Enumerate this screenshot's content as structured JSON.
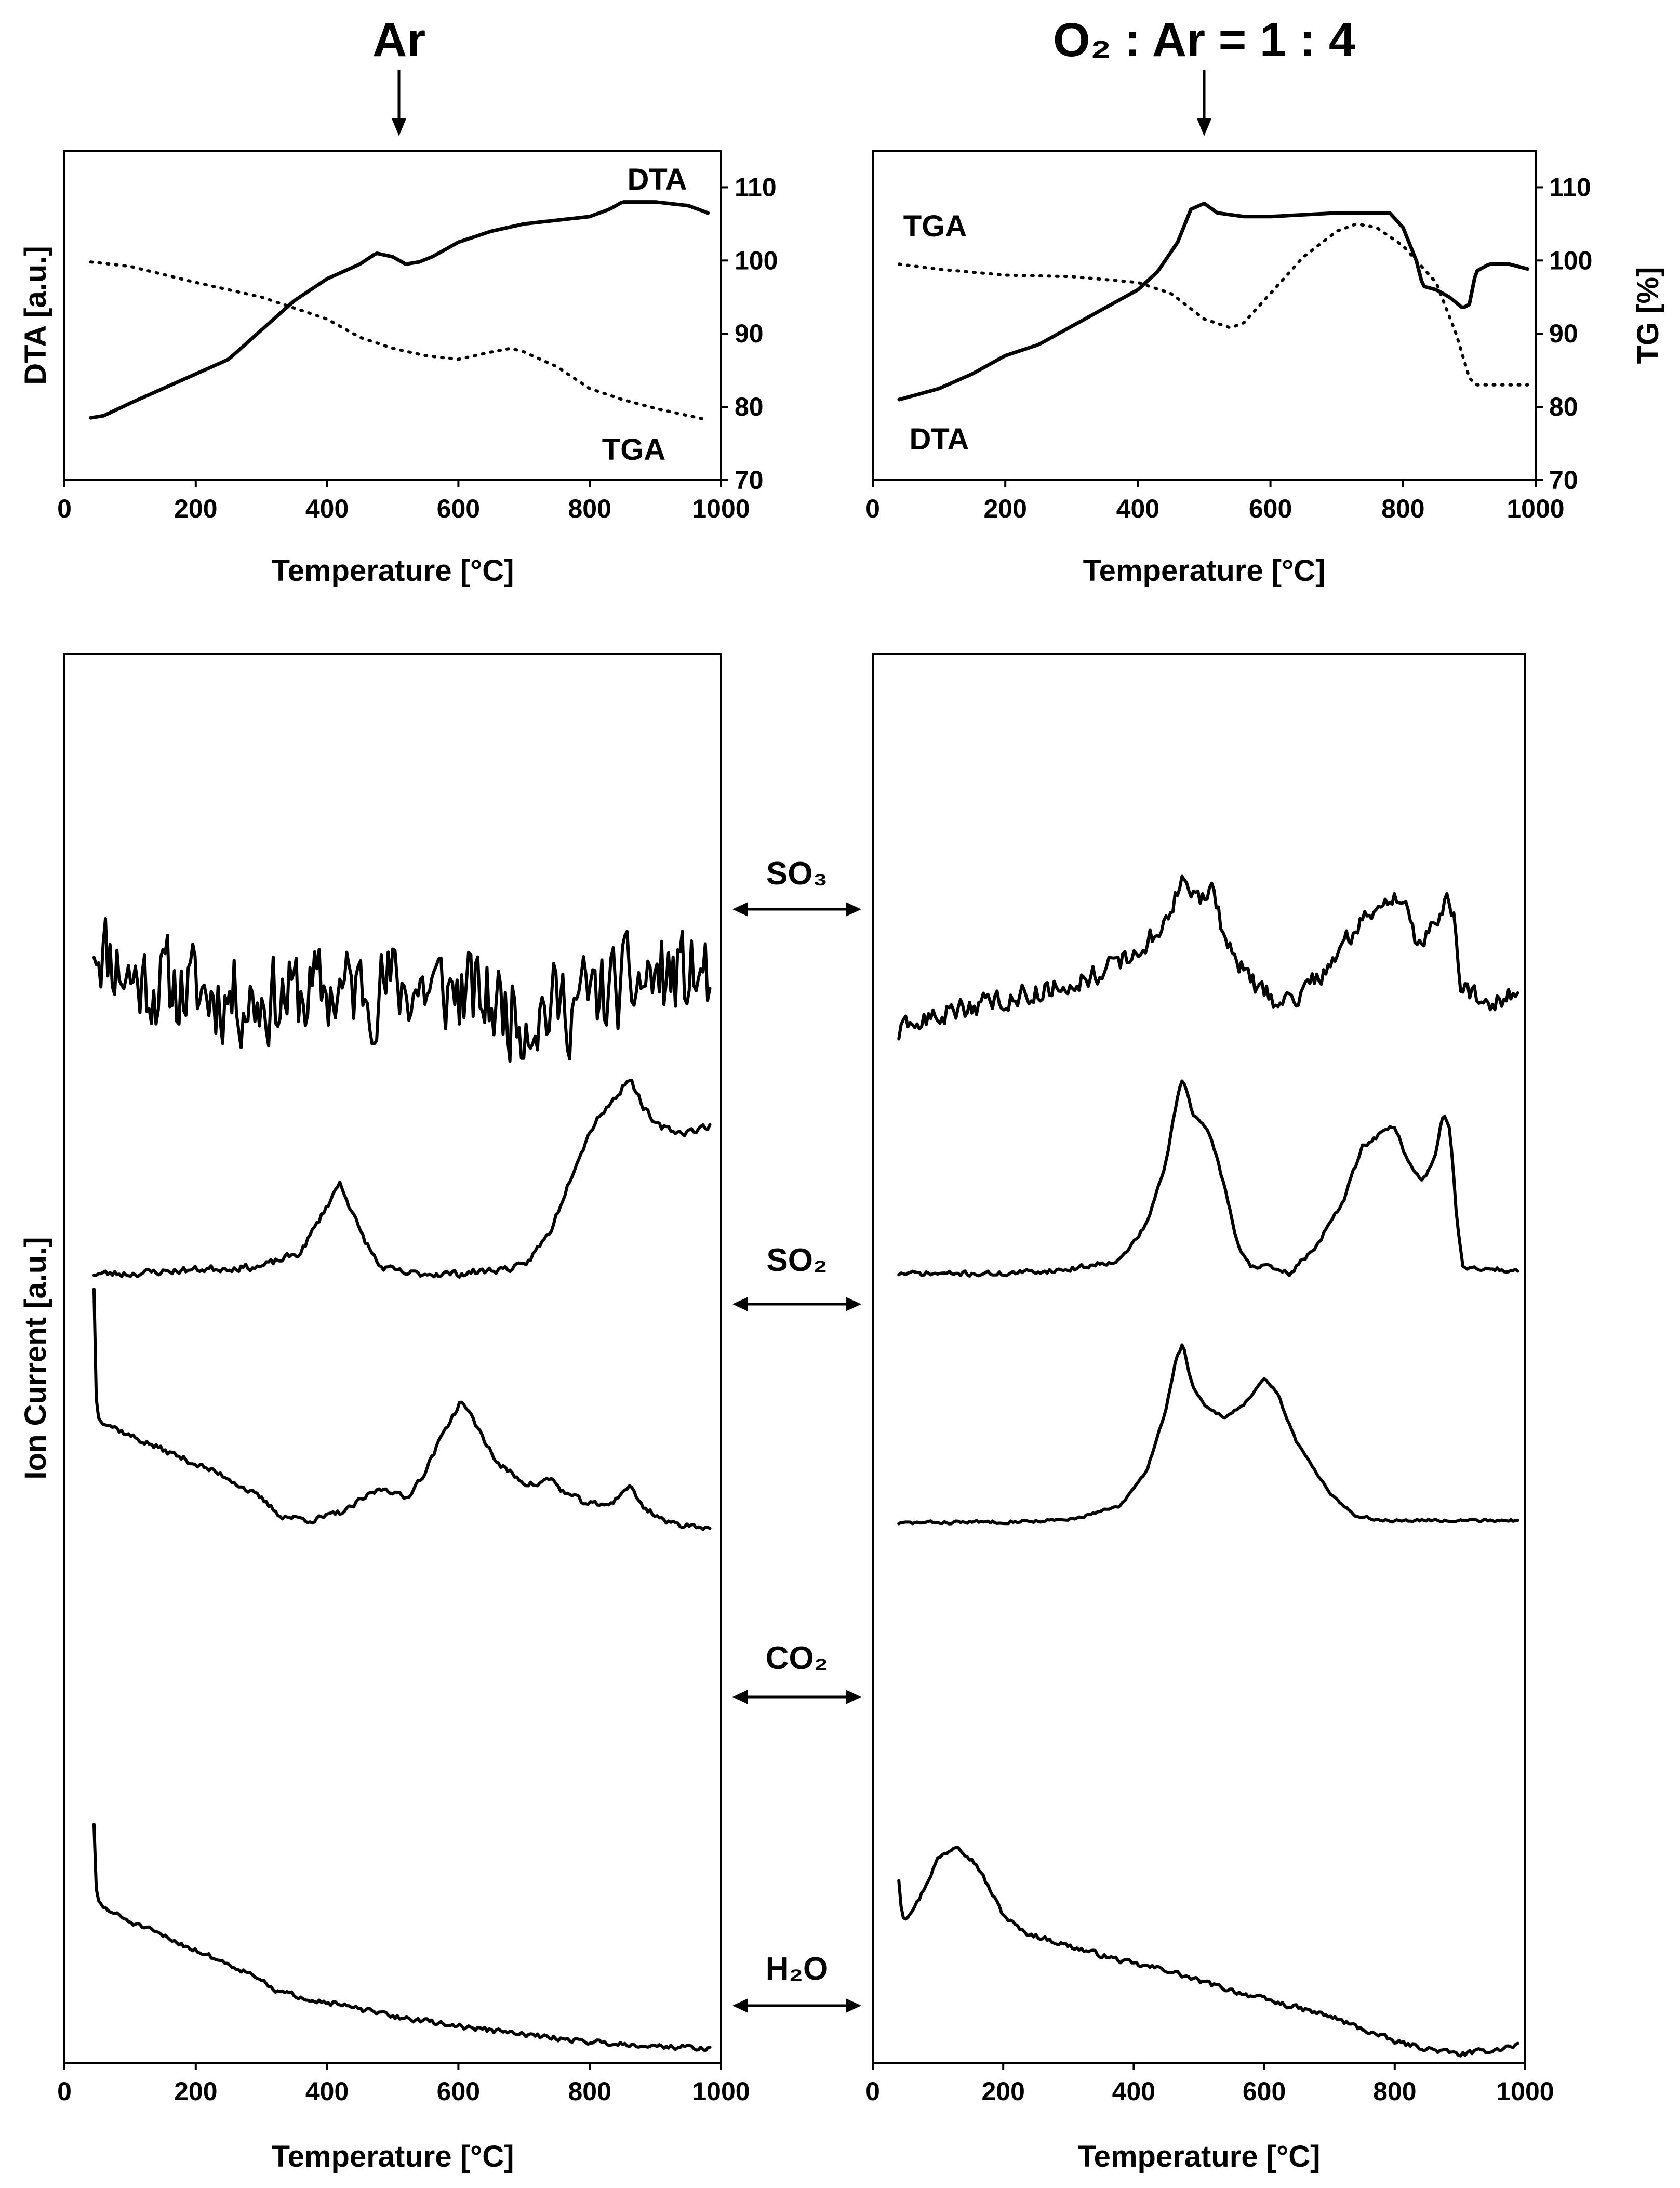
{
  "figure": {
    "left_title": "Ar",
    "right_title": "O₂ : Ar = 1 : 4",
    "ms_ylabel": "Ion Current [a.u.]",
    "gases": [
      "SO₃",
      "SO₂",
      "CO₂",
      "H₂O"
    ]
  },
  "chart_data": [
    {
      "id": "ta-ar",
      "type": "line",
      "title": "Ar",
      "xlabel": "Temperature [°C]",
      "ylabel_left": "DTA [a.u.]",
      "ylabel_right": "",
      "xlim": [
        0,
        1000
      ],
      "xticks": [
        0,
        200,
        400,
        600,
        800,
        1000
      ],
      "tg_ylim": [
        70,
        115
      ],
      "tg_yticks": [
        70,
        80,
        90,
        100,
        110
      ],
      "dta_ylim": [
        70,
        115
      ],
      "series": [
        {
          "name": "DTA",
          "style": "solid",
          "axis": "dta",
          "x": [
            40,
            60,
            100,
            150,
            200,
            250,
            300,
            350,
            400,
            450,
            475,
            500,
            520,
            540,
            560,
            600,
            650,
            700,
            750,
            800,
            830,
            850,
            880,
            900,
            950,
            980
          ],
          "y": [
            78.5,
            78.8,
            80.5,
            82.5,
            84.5,
            86.5,
            90.5,
            94.5,
            97.5,
            99.5,
            101,
            100.5,
            99.5,
            99.8,
            100.5,
            102.5,
            104,
            105,
            105.5,
            106,
            107,
            108,
            108,
            108,
            107.5,
            106.5
          ]
        },
        {
          "name": "TGA",
          "style": "dotted",
          "axis": "tg",
          "x": [
            40,
            100,
            200,
            300,
            400,
            450,
            500,
            550,
            600,
            650,
            680,
            700,
            750,
            800,
            850,
            900,
            950,
            980
          ],
          "y": [
            99.8,
            99.2,
            97,
            95,
            92,
            89.5,
            88,
            87,
            86.5,
            87.5,
            88,
            87.5,
            85.5,
            82.5,
            81,
            79.8,
            78.8,
            78.2
          ]
        }
      ],
      "labels": [
        "DTA",
        "TGA"
      ]
    },
    {
      "id": "ta-o2",
      "type": "line",
      "title": "O₂ : Ar = 1 : 4",
      "xlabel": "Temperature [°C]",
      "ylabel_left": "",
      "ylabel_right": "TG [%]",
      "xlim": [
        0,
        1000
      ],
      "xticks": [
        0,
        200,
        400,
        600,
        800,
        1000
      ],
      "tg_ylim": [
        70,
        115
      ],
      "tg_yticks": [
        70,
        80,
        90,
        100,
        110
      ],
      "dta_ylim": [
        70,
        115
      ],
      "series": [
        {
          "name": "DTA",
          "style": "solid",
          "axis": "dta",
          "x": [
            40,
            100,
            150,
            200,
            250,
            300,
            350,
            400,
            430,
            460,
            480,
            500,
            520,
            560,
            600,
            700,
            780,
            800,
            820,
            830,
            850,
            870,
            890,
            900,
            910,
            930,
            960,
            990
          ],
          "y": [
            81,
            82.5,
            84.5,
            87,
            88.5,
            91,
            93.5,
            96,
            98.5,
            102.5,
            107,
            107.8,
            106.5,
            106,
            106,
            106.5,
            106.5,
            104.5,
            100,
            96.5,
            96,
            95,
            93.5,
            94,
            98.5,
            99.5,
            99.5,
            98.8
          ]
        },
        {
          "name": "TGA",
          "style": "dotted",
          "axis": "tg",
          "x": [
            40,
            100,
            200,
            300,
            400,
            450,
            500,
            540,
            560,
            600,
            650,
            700,
            730,
            760,
            800,
            850,
            880,
            900,
            910,
            930,
            960,
            990
          ],
          "y": [
            99.5,
            98.8,
            98,
            97.8,
            97,
            95.5,
            92,
            90.8,
            91.5,
            95.5,
            100.5,
            104,
            105,
            104.5,
            102,
            97,
            90,
            84,
            83,
            83,
            83,
            83
          ]
        }
      ],
      "labels": [
        "TGA",
        "DTA"
      ]
    },
    {
      "id": "ms-ar",
      "type": "line",
      "title": "Ar",
      "xlabel": "Temperature [°C]",
      "ylabel": "Ion Current [a.u.]",
      "xlim": [
        0,
        1000
      ],
      "xticks": [
        0,
        200,
        400,
        600,
        800,
        1000
      ],
      "ylim": [
        0,
        100
      ],
      "series": [
        {
          "name": "SO₃",
          "noise": 4.6,
          "seed": 11,
          "x": [
            45,
            100,
            200,
            300,
            400,
            500,
            600,
            700,
            800,
            900,
            985
          ],
          "y": [
            80,
            77,
            76,
            75.5,
            76,
            76.5,
            76,
            74.5,
            75.5,
            77,
            77
          ]
        },
        {
          "name": "SO₂",
          "noise": 0.35,
          "seed": 23,
          "x": [
            45,
            100,
            200,
            300,
            360,
            390,
            420,
            450,
            480,
            520,
            600,
            700,
            740,
            780,
            810,
            840,
            860,
            880,
            900,
            940,
            985
          ],
          "y": [
            56,
            56,
            56.3,
            56.5,
            57.5,
            60,
            62.5,
            59,
            56.5,
            56,
            56,
            56.5,
            59,
            64,
            67,
            68.5,
            70,
            68,
            66.5,
            66,
            66.5
          ]
        },
        {
          "name": "CO₂",
          "noise": 0.3,
          "seed": 37,
          "x": [
            45,
            48,
            50,
            60,
            100,
            150,
            200,
            250,
            300,
            330,
            380,
            430,
            470,
            490,
            520,
            550,
            580,
            605,
            630,
            660,
            700,
            720,
            740,
            760,
            790,
            820,
            840,
            860,
            880,
            920,
            985
          ],
          "y": [
            55,
            47.5,
            46,
            45.5,
            44.5,
            43.5,
            42.5,
            41.5,
            40,
            38.8,
            38.5,
            39.2,
            40.5,
            40.8,
            40,
            42,
            45,
            47,
            45,
            42.5,
            41.2,
            41,
            41.5,
            40.5,
            39.8,
            39.5,
            40,
            41,
            39.5,
            38.3,
            38
          ]
        },
        {
          "name": "H₂O",
          "noise": 0.25,
          "seed": 51,
          "x": [
            45,
            48,
            50,
            60,
            100,
            150,
            200,
            250,
            300,
            310,
            330,
            400,
            500,
            600,
            700,
            800,
            900,
            985
          ],
          "y": [
            17,
            12.5,
            11.5,
            11,
            10,
            9,
            8,
            7,
            6,
            5.3,
            5,
            4.3,
            3.3,
            2.6,
            2,
            1.5,
            1.2,
            1
          ]
        }
      ]
    },
    {
      "id": "ms-o2",
      "type": "line",
      "title": "O₂ : Ar = 1 : 4",
      "xlabel": "Temperature [°C]",
      "ylabel": "",
      "xlim": [
        0,
        1000
      ],
      "xticks": [
        0,
        200,
        400,
        600,
        800,
        1000
      ],
      "ylim": [
        0,
        100
      ],
      "series": [
        {
          "name": "SO₃",
          "noise": 1.1,
          "seed": 63,
          "x": [
            40,
            80,
            150,
            200,
            250,
            300,
            350,
            400,
            430,
            460,
            475,
            500,
            520,
            540,
            560,
            590,
            620,
            650,
            700,
            750,
            780,
            800,
            820,
            830,
            850,
            870,
            880,
            890,
            900,
            950,
            990
          ],
          "y": [
            73,
            74,
            75,
            75.5,
            76,
            76.5,
            77.5,
            78.5,
            80,
            82,
            84,
            82.5,
            83,
            80,
            78,
            76,
            75.5,
            75.5,
            78,
            81,
            82.5,
            83,
            81.5,
            79.5,
            80,
            82,
            82.5,
            81.5,
            76,
            75.5,
            76
          ]
        },
        {
          "name": "SO₂",
          "noise": 0.25,
          "seed": 71,
          "x": [
            40,
            200,
            300,
            380,
            420,
            450,
            465,
            475,
            490,
            520,
            540,
            560,
            580,
            600,
            640,
            680,
            720,
            750,
            780,
            800,
            820,
            840,
            860,
            875,
            885,
            895,
            905,
            920,
            990
          ],
          "y": [
            56,
            56,
            56.3,
            57,
            59.5,
            64,
            68,
            70,
            67.5,
            65.5,
            62,
            58,
            56.5,
            56.5,
            56,
            58,
            61,
            65,
            66,
            66.5,
            64,
            62.5,
            64,
            67.5,
            66,
            60,
            56.5,
            56.3,
            56.3
          ]
        },
        {
          "name": "CO₂",
          "noise": 0.15,
          "seed": 83,
          "x": [
            40,
            200,
            300,
            380,
            420,
            450,
            465,
            475,
            490,
            510,
            540,
            570,
            600,
            620,
            650,
            700,
            740,
            780,
            850,
            990
          ],
          "y": [
            38.3,
            38.4,
            38.5,
            39.5,
            42,
            46.5,
            50,
            51,
            48,
            46.5,
            45.8,
            46.8,
            48.5,
            47.5,
            44,
            40.5,
            38.8,
            38.5,
            38.5,
            38.5
          ]
        },
        {
          "name": "H₂O",
          "noise": 0.25,
          "seed": 97,
          "x": [
            40,
            45,
            50,
            70,
            100,
            130,
            160,
            200,
            230,
            300,
            400,
            450,
            500,
            600,
            700,
            800,
            850,
            900,
            950,
            990
          ],
          "y": [
            13,
            10.5,
            10.3,
            11.5,
            14.5,
            15.5,
            14,
            10.5,
            9.3,
            8.3,
            7,
            6.6,
            5.8,
            4.5,
            3.3,
            1.5,
            1,
            0.6,
            0.9,
            1.3
          ]
        }
      ]
    }
  ]
}
